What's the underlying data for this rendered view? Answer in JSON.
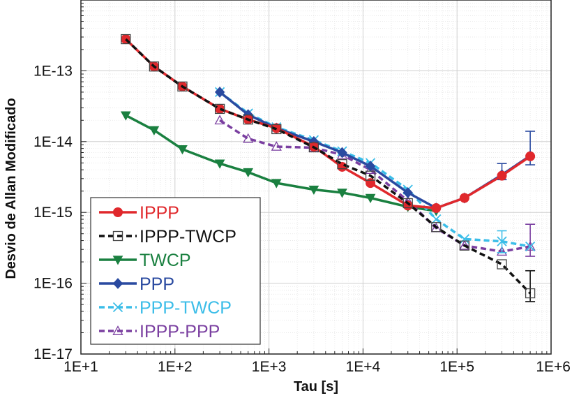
{
  "chart_data": {
    "type": "line",
    "title": "",
    "xlabel": "Tau [s]",
    "ylabel": "Desvio de Allan Modificado",
    "xscale": "log",
    "yscale": "log",
    "xlim": [
      10,
      1000000
    ],
    "ylim": [
      1e-17,
      1e-12
    ],
    "x_tick_labels": [
      "1E+1",
      "1E+2",
      "1E+3",
      "1E+4",
      "1E+5",
      "1E+6"
    ],
    "y_tick_labels": [
      "1E-13",
      "1E-14",
      "1E-15",
      "1E-16",
      "1E-17"
    ],
    "grid": true,
    "legend_position": "bottom-left",
    "series": [
      {
        "name": "IPPP",
        "color": "#e0282c",
        "line": "solid",
        "marker": "circle",
        "x": [
          30,
          60,
          120,
          300,
          600,
          1200,
          3000,
          6000,
          12000,
          30000,
          60000,
          120000,
          300000,
          600000
        ],
        "y": [
          2.8e-13,
          1.15e-13,
          6e-14,
          2.9e-14,
          2.05e-14,
          1.55e-14,
          8.5e-15,
          4.4e-15,
          2.6e-15,
          1.25e-15,
          1.15e-15,
          1.6e-15,
          3.3e-15,
          6.2e-15
        ]
      },
      {
        "name": "IPPP-TWCP",
        "color": "#111111",
        "line": "dashed",
        "marker": "square-open",
        "x": [
          30,
          60,
          120,
          300,
          600,
          1200,
          3000,
          6000,
          12000,
          30000,
          60000,
          120000,
          300000,
          600000
        ],
        "y": [
          2.8e-13,
          1.15e-13,
          6e-14,
          2.9e-14,
          2.05e-14,
          1.5e-14,
          8.3e-15,
          4.8e-15,
          3.3e-15,
          1.35e-15,
          6.2e-16,
          3.4e-16,
          1.85e-16,
          7.2e-17
        ],
        "error_bars": [
          {
            "x": 600000,
            "low": 5.5e-17,
            "high": 1.5e-16
          }
        ]
      },
      {
        "name": "TWCP",
        "color": "#1a8040",
        "line": "solid",
        "marker": "triangle-down",
        "x": [
          30,
          60,
          120,
          300,
          600,
          1200,
          3000,
          6000,
          12000,
          30000,
          60000
        ],
        "y": [
          2.35e-14,
          1.45e-14,
          7.8e-15,
          4.9e-15,
          3.7e-15,
          2.6e-15,
          2.1e-15,
          1.9e-15,
          1.6e-15,
          1.2e-15,
          1.05e-15
        ]
      },
      {
        "name": "PPP",
        "color": "#2a4aa0",
        "line": "solid",
        "marker": "diamond",
        "x": [
          300,
          600,
          1200,
          3000,
          6000,
          12000,
          30000,
          60000,
          120000,
          300000,
          600000
        ],
        "y": [
          5e-14,
          2.4e-14,
          1.55e-14,
          1e-14,
          7e-15,
          4.5e-15,
          1.9e-15,
          1.15e-15,
          1.6e-15,
          3.4e-15,
          6.3e-15
        ],
        "error_bars": [
          {
            "x": 300000,
            "low": 2.9e-15,
            "high": 4.9e-15
          },
          {
            "x": 600000,
            "low": 4.7e-15,
            "high": 1.4e-14
          }
        ]
      },
      {
        "name": "PPP-TWCP",
        "color": "#3bbde8",
        "line": "dashed",
        "marker": "x",
        "x": [
          300,
          600,
          1200,
          3000,
          6000,
          12000,
          30000,
          60000,
          120000,
          300000,
          600000
        ],
        "y": [
          5e-14,
          2.5e-14,
          1.6e-14,
          1.05e-14,
          7.3e-15,
          5e-15,
          2.1e-15,
          8e-16,
          4.2e-16,
          3.9e-16,
          3.3e-16
        ],
        "error_bars": [
          {
            "x": 300000,
            "low": 2.7e-16,
            "high": 5.5e-16
          }
        ]
      },
      {
        "name": "IPPP-PPP",
        "color": "#7a3fa0",
        "line": "dashed",
        "marker": "triangle-open",
        "x": [
          300,
          600,
          1200,
          3000,
          6000,
          12000,
          30000,
          60000,
          120000,
          300000,
          600000
        ],
        "y": [
          2e-14,
          1.1e-14,
          8.5e-15,
          8.2e-15,
          6.5e-15,
          4e-15,
          1.45e-15,
          6e-16,
          3.4e-16,
          2.8e-16,
          3.3e-16
        ],
        "error_bars": [
          {
            "x": 600000,
            "low": 2.4e-16,
            "high": 6.8e-16
          }
        ]
      }
    ]
  }
}
